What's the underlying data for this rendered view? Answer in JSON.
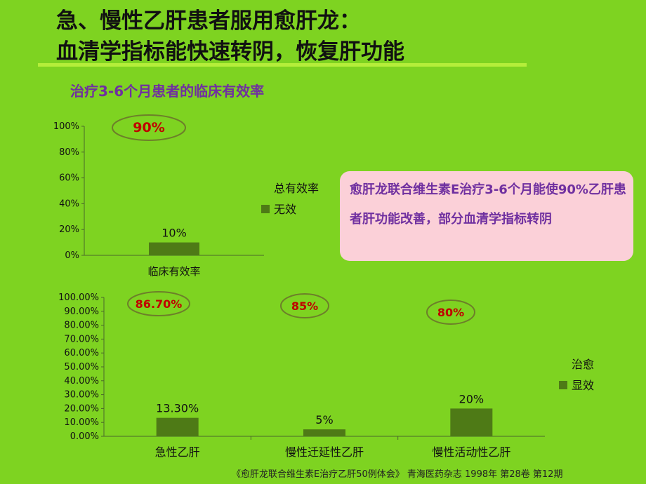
{
  "slide": {
    "title_line1": "急、慢性乙肝患者服用愈肝龙：",
    "title_line2": "血清学指标能快速转阴，恢复肝功能",
    "subtitle": "治疗3-6个月患者的临床有效率",
    "callout": "愈肝龙联合维生素E治疗3-6个月能使90%乙肝患者肝功能改善，部分血清学指标转阴",
    "source": "《愈肝龙联合维生素E治疗乙肝50例体会》 青海医药杂志 1998年 第28卷 第12期"
  },
  "colors": {
    "background": "#7ed321",
    "bar": "#4e7a16",
    "ellipse": "#6d7f2a",
    "highlight_text": "#c00000",
    "axis": "#4a6a2a"
  },
  "chart_data": [
    {
      "type": "bar",
      "categories": [
        "临床有效率"
      ],
      "series": [
        {
          "name": "总有效率",
          "values": [
            90
          ],
          "shown_as": "ellipse annotation"
        },
        {
          "name": "无效",
          "values": [
            10
          ]
        }
      ],
      "value_labels": [
        "10%"
      ],
      "annotation": "90%",
      "yticks": [
        "100%",
        "80%",
        "60%",
        "40%",
        "20%",
        "0%"
      ],
      "ylim": [
        0,
        100
      ],
      "legend_position": "right",
      "grid": false
    },
    {
      "type": "bar",
      "categories": [
        "急性乙肝",
        "慢性迁延性乙肝",
        "慢性活动性乙肝"
      ],
      "series": [
        {
          "name": "治愈",
          "values": [
            86.7,
            85,
            80
          ],
          "shown_as": "ellipse annotations"
        },
        {
          "name": "显效",
          "values": [
            13.3,
            5,
            20
          ]
        }
      ],
      "value_labels": [
        "13.30%",
        "5%",
        "20%"
      ],
      "annotations": [
        "86.70%",
        "85%",
        "80%"
      ],
      "yticks": [
        "100.00%",
        "90.00%",
        "80.00%",
        "70.00%",
        "60.00%",
        "50.00%",
        "40.00%",
        "30.00%",
        "20.00%",
        "10.00%",
        "0.00%"
      ],
      "ylim": [
        0,
        100
      ],
      "legend_position": "right",
      "grid": false
    }
  ]
}
